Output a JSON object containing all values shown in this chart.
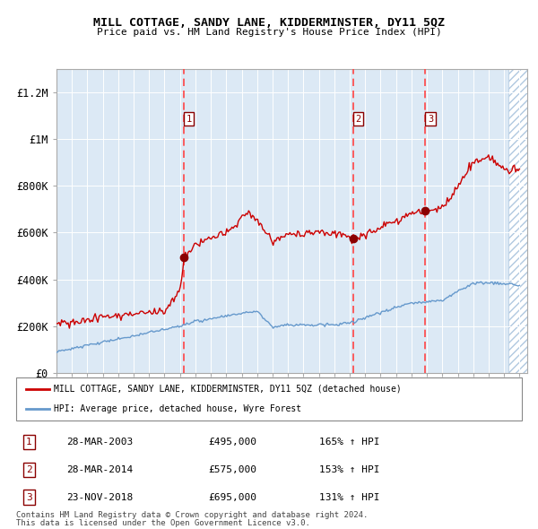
{
  "title": "MILL COTTAGE, SANDY LANE, KIDDERMINSTER, DY11 5QZ",
  "subtitle": "Price paid vs. HM Land Registry's House Price Index (HPI)",
  "x_start_year": 1995,
  "x_end_year": 2025,
  "y_min": 0,
  "y_max": 1300000,
  "y_ticks": [
    0,
    200000,
    400000,
    600000,
    800000,
    1000000,
    1200000
  ],
  "y_tick_labels": [
    "£0",
    "£200K",
    "£400K",
    "£600K",
    "£800K",
    "£1M",
    "£1.2M"
  ],
  "background_color": "#dce9f5",
  "hatch_color": "#b0c8e0",
  "grid_color": "#ffffff",
  "red_line_color": "#cc0000",
  "blue_line_color": "#6699cc",
  "dashed_line_color": "#ff4444",
  "dot_color": "#8b0000",
  "sale_events": [
    {
      "label": "1",
      "year_decimal": 2003.23,
      "price": 495000,
      "date": "28-MAR-2003",
      "hpi_pct": "165%"
    },
    {
      "label": "2",
      "year_decimal": 2014.23,
      "price": 575000,
      "date": "28-MAR-2014",
      "hpi_pct": "153%"
    },
    {
      "label": "3",
      "year_decimal": 2018.9,
      "price": 695000,
      "date": "23-NOV-2018",
      "hpi_pct": "131%"
    }
  ],
  "legend_line1": "MILL COTTAGE, SANDY LANE, KIDDERMINSTER, DY11 5QZ (detached house)",
  "legend_line2": "HPI: Average price, detached house, Wyre Forest",
  "footer1": "Contains HM Land Registry data © Crown copyright and database right 2024.",
  "footer2": "This data is licensed under the Open Government Licence v3.0."
}
